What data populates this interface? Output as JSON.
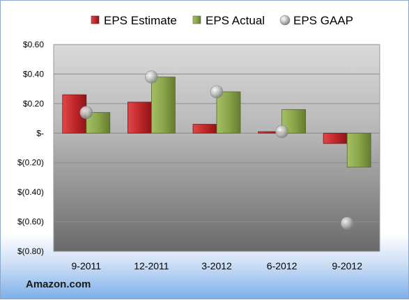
{
  "chart_data": {
    "type": "bar",
    "categories": [
      "9-2011",
      "12-2011",
      "3-2012",
      "6-2012",
      "9-2012"
    ],
    "series": [
      {
        "name": "EPS Estimate",
        "kind": "bar",
        "color": "#c0282a",
        "values": [
          0.26,
          0.21,
          0.06,
          0.01,
          -0.07
        ]
      },
      {
        "name": "EPS Actual",
        "kind": "bar",
        "color": "#8aa64a",
        "values": [
          0.14,
          0.38,
          0.28,
          0.16,
          -0.23
        ]
      },
      {
        "name": "EPS GAAP",
        "kind": "marker",
        "color": "#b8b8b8",
        "values": [
          0.14,
          0.38,
          0.28,
          0.01,
          -0.61
        ]
      }
    ],
    "y_tick_values": [
      0.6,
      0.4,
      0.2,
      0,
      -0.2,
      -0.4,
      -0.6,
      -0.8
    ],
    "y_tick_labels": [
      "$0.60",
      "$0.40",
      "$0.20",
      "$-",
      "$(0.20)",
      "$(0.40)",
      "$(0.60)",
      "$(0.80)"
    ],
    "ylim": [
      -0.8,
      0.6
    ],
    "grid": true,
    "legend_position": "top"
  },
  "footer": {
    "source": "Amazon.com"
  }
}
